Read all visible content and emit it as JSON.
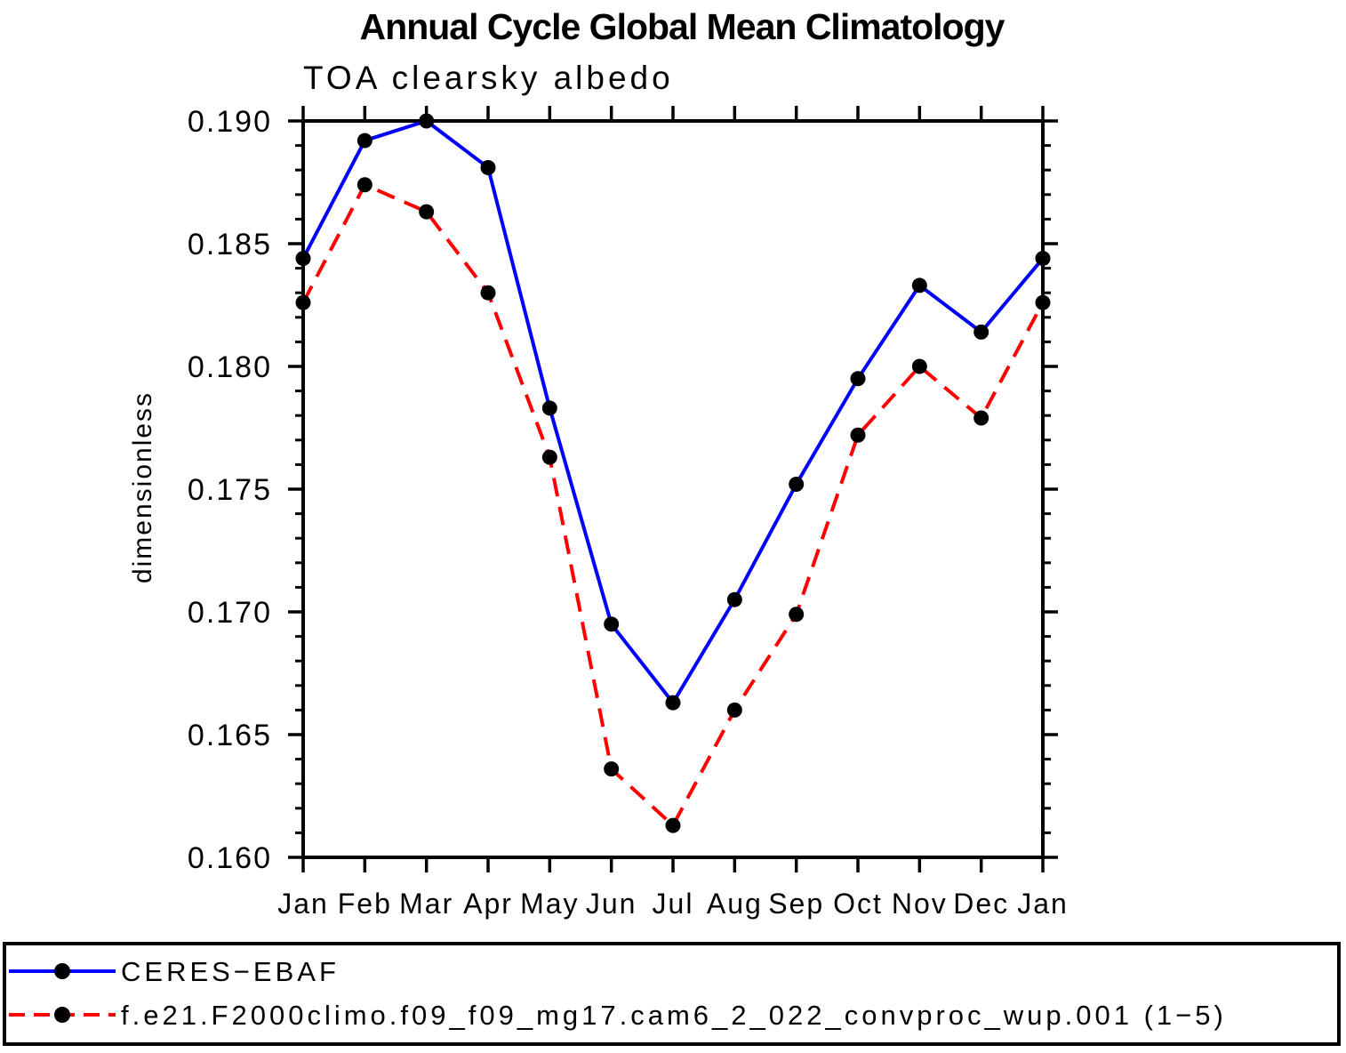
{
  "title": "Annual Cycle Global Mean Climatology",
  "subtitle": "TOA clearsky albedo",
  "chart_data": {
    "type": "line",
    "x_categories": [
      "Jan",
      "Feb",
      "Mar",
      "Apr",
      "May",
      "Jun",
      "Jul",
      "Aug",
      "Sep",
      "Oct",
      "Nov",
      "Dec",
      "Jan"
    ],
    "xlabel": "",
    "ylabel": "dimensionless",
    "ylim": [
      0.16,
      0.19
    ],
    "ytick_major_step": 0.005,
    "ytick_minor_step": 0.001,
    "ytick_format_decimals": 3,
    "grid": false,
    "legend_position": "bottom",
    "colors": {
      "axis": "#000000",
      "marker": "#000000",
      "series1": "#0000ff",
      "series2": "#ff0000"
    },
    "series": [
      {
        "name": "CERES−EBAF",
        "color": "#0000ff",
        "line_style": "solid",
        "marker": "filled-circle",
        "marker_color": "#000000",
        "values": [
          0.1844,
          0.1892,
          0.19,
          0.1881,
          0.1783,
          0.1695,
          0.1663,
          0.1705,
          0.1752,
          0.1795,
          0.1833,
          0.1814,
          0.1844
        ]
      },
      {
        "name": "f.e21.F2000climo.f09_f09_mg17.cam6_2_022_convproc_wup.001 (1−5)",
        "color": "#ff0000",
        "line_style": "dashed",
        "marker": "filled-circle",
        "marker_color": "#000000",
        "values": [
          0.1826,
          0.1874,
          0.1863,
          0.183,
          0.1763,
          0.1636,
          0.1613,
          0.166,
          0.1699,
          0.1772,
          0.18,
          0.1779,
          0.1826
        ]
      }
    ]
  }
}
